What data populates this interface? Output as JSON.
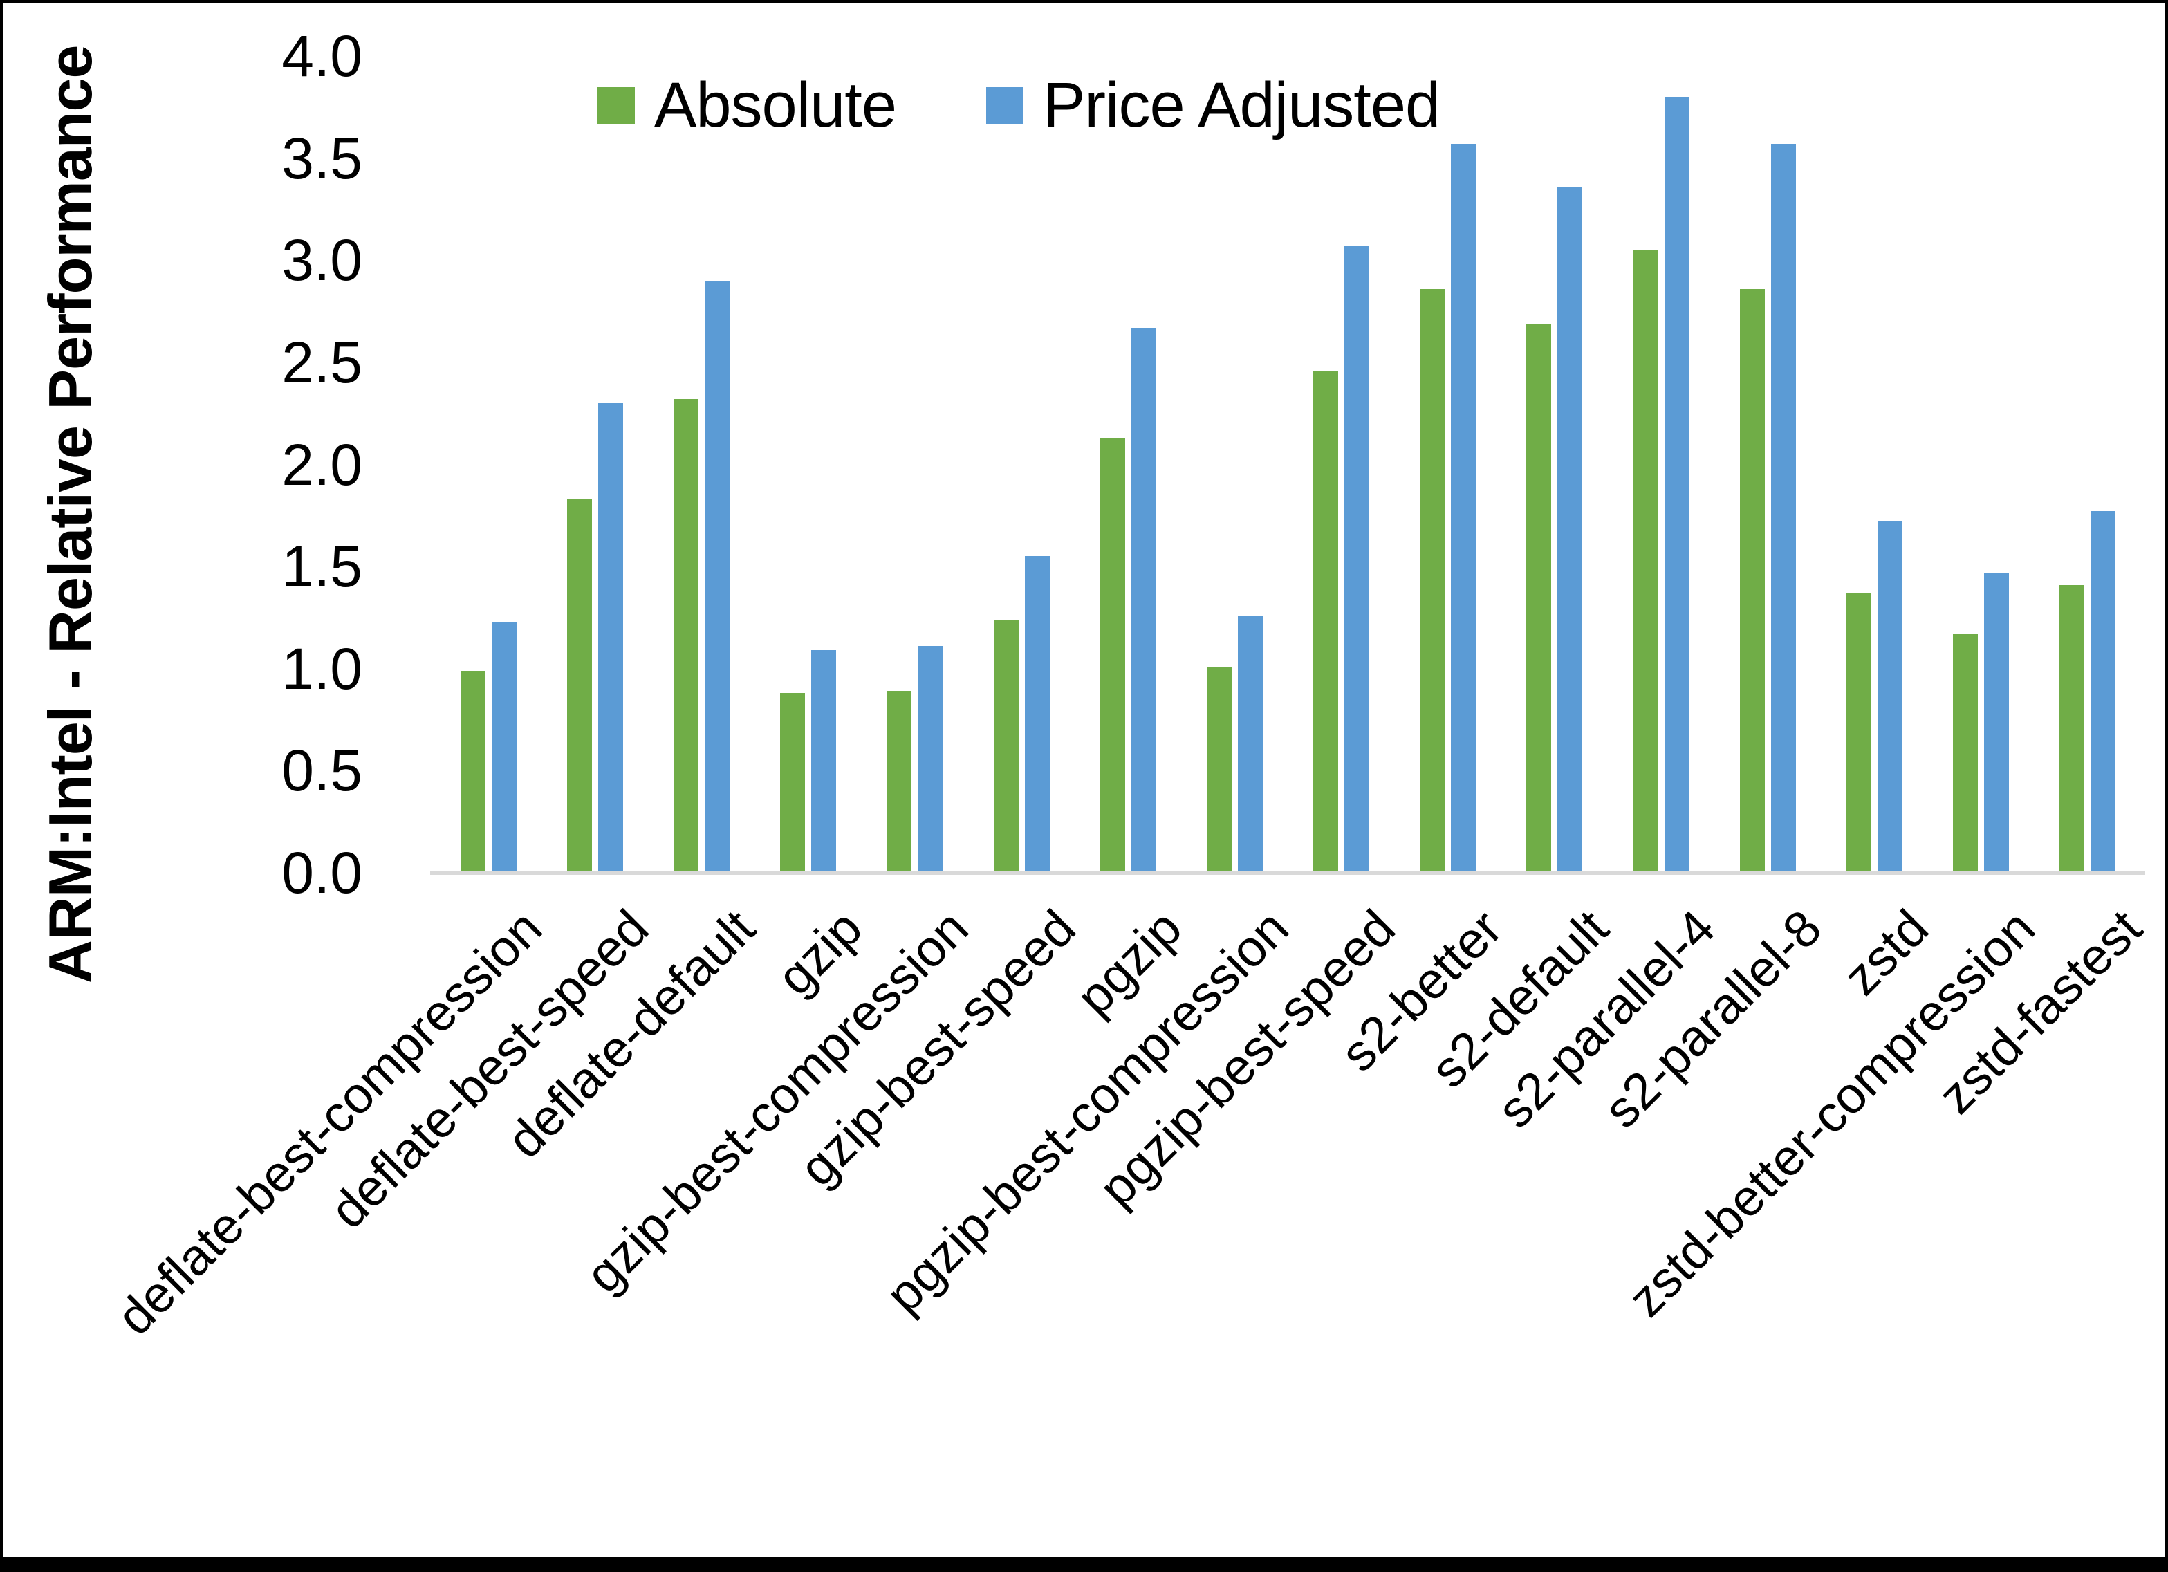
{
  "y_axis": {
    "title": "ARM:Intel - Relative Performance",
    "tick_labels": [
      "0.0",
      "0.5",
      "1.0",
      "1.5",
      "2.0",
      "2.5",
      "3.0",
      "3.5",
      "4.0"
    ],
    "min": 0.0,
    "max": 4.0
  },
  "legend": {
    "items": [
      {
        "label": "Absolute",
        "color": "#70AD47"
      },
      {
        "label": "Price Adjusted",
        "color": "#5B9BD5"
      }
    ]
  },
  "colors": {
    "absolute_green": "#70AD47",
    "price_adjusted_blue": "#5B9BD5",
    "axis_line": "#d9d9d9",
    "frame": "#000000"
  },
  "chart_data": {
    "type": "bar",
    "title": "",
    "xlabel": "",
    "ylabel": "ARM:Intel - Relative Performance",
    "ylim": [
      0.0,
      4.0
    ],
    "y_tick_step": 0.5,
    "grid": false,
    "legend_position": "top-center",
    "categories": [
      "deflate-best-compression",
      "deflate-best-speed",
      "deflate-default",
      "gzip",
      "gzip-best-compression",
      "gzip-best-speed",
      "pgzip",
      "pgzip-best-compression",
      "pgzip-best-speed",
      "s2-better",
      "s2-default",
      "s2-parallel-4",
      "s2-parallel-8",
      "zstd",
      "zstd-better-compression",
      "zstd-fastest"
    ],
    "series": [
      {
        "name": "Absolute",
        "color": "#70AD47",
        "values": [
          0.99,
          1.83,
          2.32,
          0.88,
          0.89,
          1.24,
          2.13,
          1.01,
          2.46,
          2.86,
          2.69,
          3.05,
          2.86,
          1.37,
          1.17,
          1.41
        ]
      },
      {
        "name": "Price Adjusted",
        "color": "#5B9BD5",
        "values": [
          1.23,
          2.3,
          2.9,
          1.09,
          1.11,
          1.55,
          2.67,
          1.26,
          3.07,
          3.57,
          3.36,
          3.8,
          3.57,
          1.72,
          1.47,
          1.77
        ]
      }
    ]
  }
}
